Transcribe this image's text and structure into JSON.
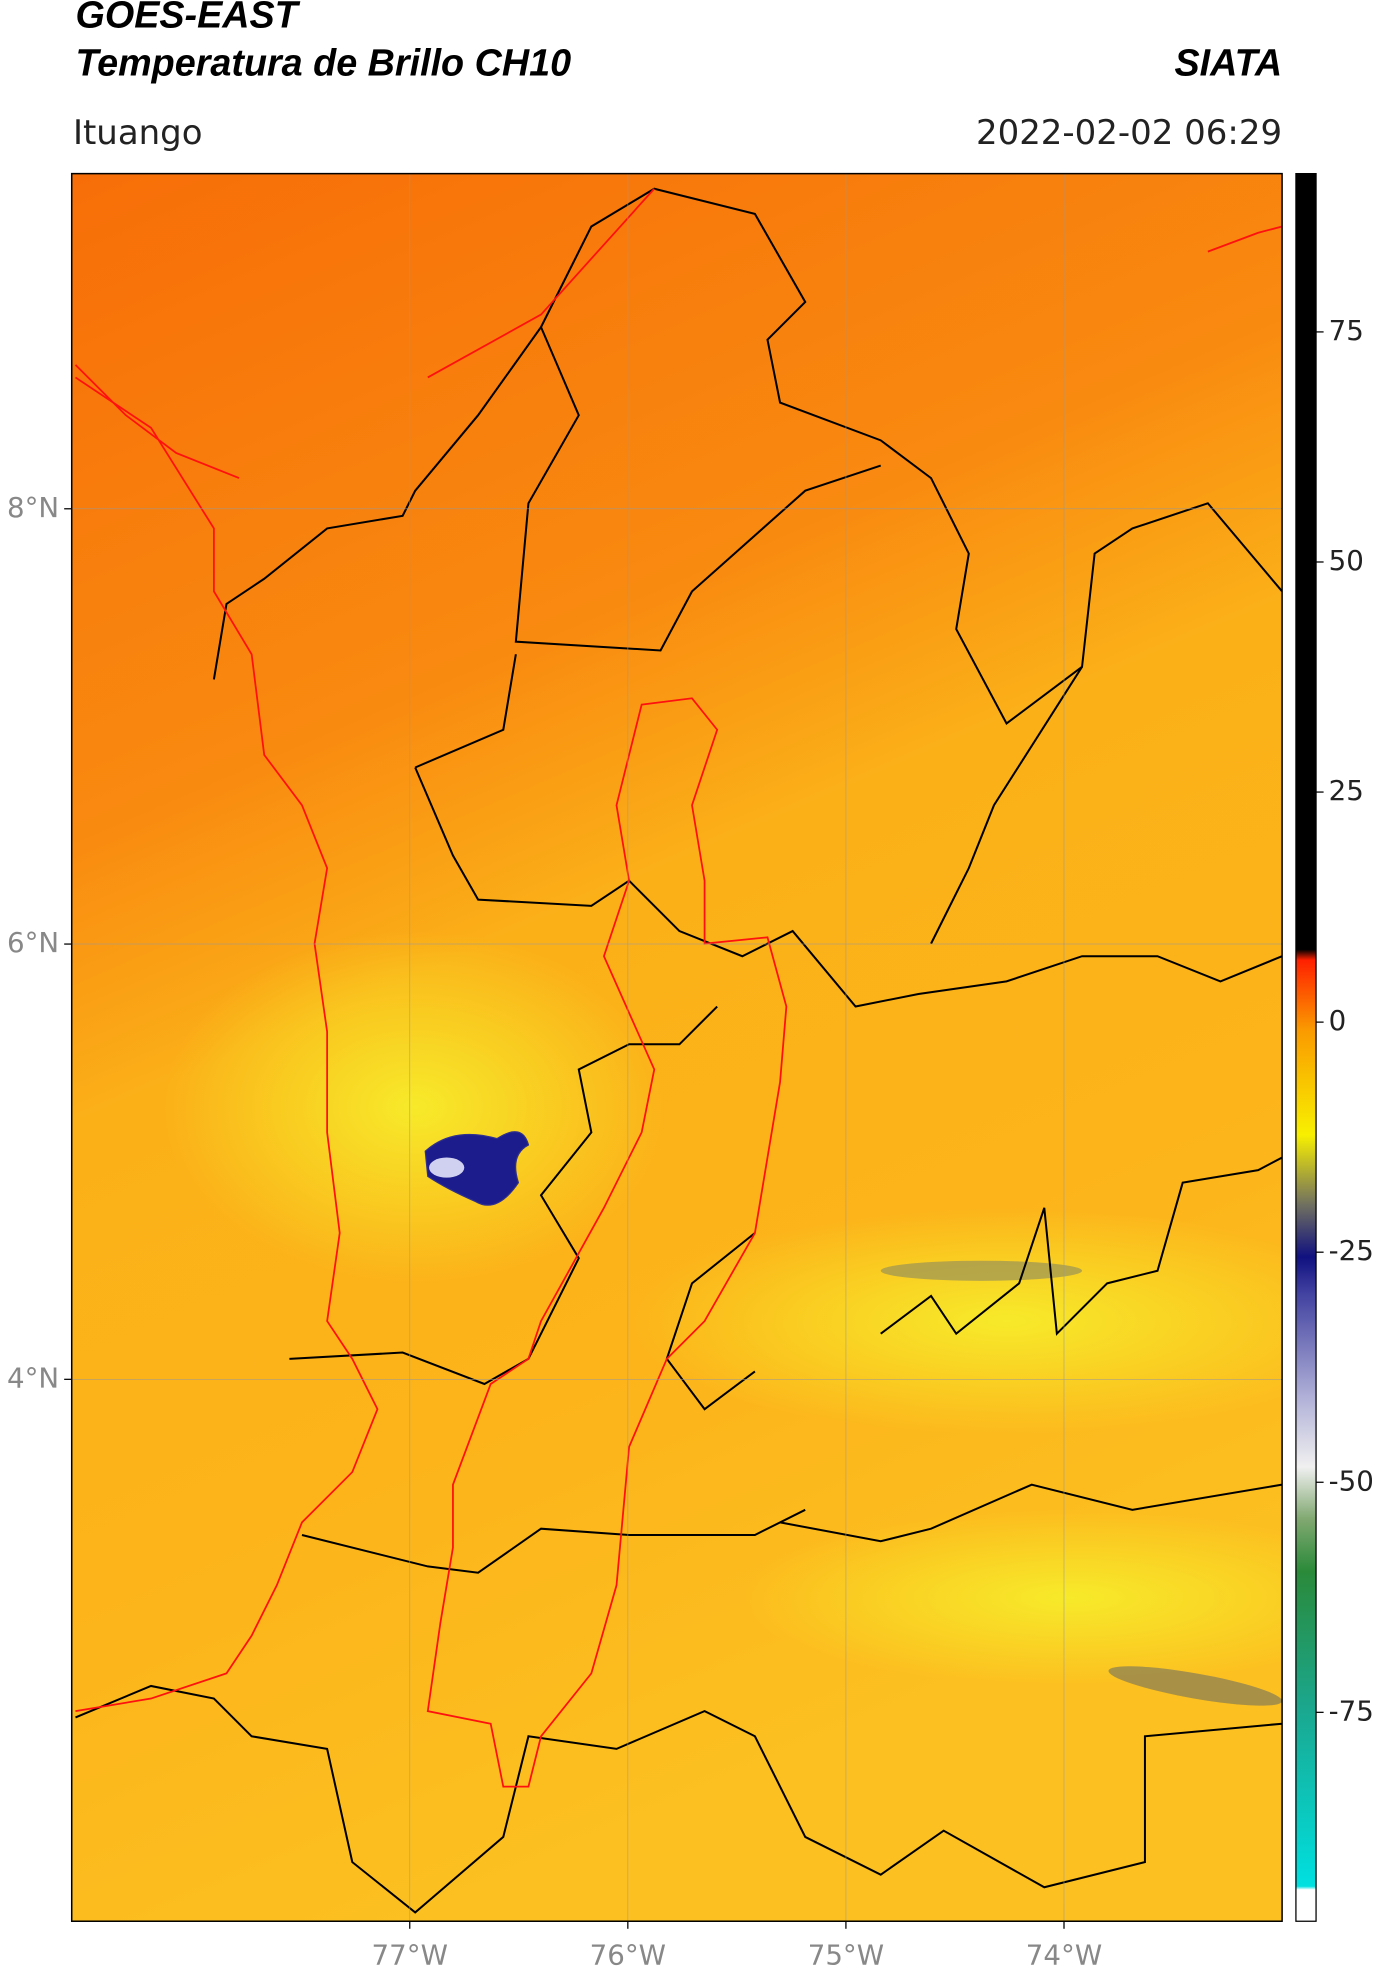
{
  "chart_data": {
    "type": "map",
    "title": "GOES-EAST",
    "subtitle": "Temperatura de Brillo CH10",
    "source": "SIATA",
    "location": "Ituango",
    "datetime": "2022-02-02 06:29",
    "xlim": [
      -78.55,
      -73.0
    ],
    "ylim": [
      1.51,
      9.54
    ],
    "xticks": [
      {
        "value": -77,
        "label": "77°W"
      },
      {
        "value": -76,
        "label": "76°W"
      },
      {
        "value": -75,
        "label": "75°W"
      },
      {
        "value": -74,
        "label": "74°W"
      }
    ],
    "yticks": [
      {
        "value": 8,
        "label": "8°N"
      },
      {
        "value": 6,
        "label": "6°N"
      },
      {
        "value": 4,
        "label": "4°N"
      }
    ],
    "grid": true,
    "colorbar": {
      "lim": [
        -97.7,
        92.2
      ],
      "ticks": [
        -75,
        -50,
        -25,
        0,
        25,
        50,
        75
      ]
    }
  }
}
